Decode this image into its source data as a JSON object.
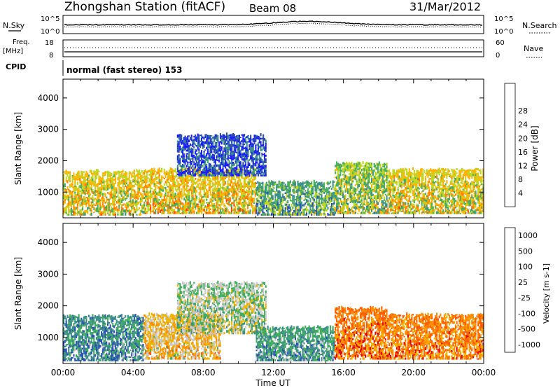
{
  "header": {
    "station": "Zhongshan Station (fitACF)",
    "beam": "Beam 08",
    "date": "31/Mar/2012"
  },
  "panels": {
    "noise": {
      "left_label": "N.Sky",
      "left_ticks": [
        "10^5",
        "10^0"
      ],
      "right_label": "N.Search",
      "right_ticks": [
        "10^5",
        "10^0"
      ]
    },
    "freq": {
      "left_label_top": "Freq.",
      "left_label_bottom": "[MHz]",
      "left_ticks": [
        "18",
        "8"
      ],
      "right_label": "Nave",
      "right_ticks": [
        "60",
        "0"
      ]
    },
    "cpid": {
      "label": "CPID",
      "text": "normal (fast stereo) 153"
    }
  },
  "chart_data": [
    {
      "type": "heatmap",
      "title": "",
      "xlabel": "Time UT",
      "ylabel": "Slant Range [km]",
      "x_ticks": [
        "00:00",
        "04:00",
        "08:00",
        "12:00",
        "16:00",
        "20:00",
        "00:00"
      ],
      "xlim": [
        0,
        24
      ],
      "y_ticks": [
        1000,
        2000,
        3000,
        4000
      ],
      "ylim": [
        180,
        4600
      ],
      "colorbar": {
        "label": "Power [dB]",
        "ticks": [
          "4",
          "8",
          "12",
          "16",
          "20",
          "24",
          "28"
        ],
        "colors": [
          "#1a1aff",
          "#2b4fb0",
          "#3b8f8a",
          "#48ad5c",
          "#bdd61f",
          "#ffb300",
          "#ff7f00",
          "#ff3b00",
          "#f00000"
        ]
      },
      "echo_regions": [
        {
          "t0": 0.0,
          "t1": 4.6,
          "r0": 250,
          "r1": 1650,
          "level": 0.55
        },
        {
          "t0": 4.6,
          "t1": 11.0,
          "r0": 300,
          "r1": 1700,
          "level": 0.58
        },
        {
          "t0": 6.5,
          "t1": 11.6,
          "r0": 1500,
          "r1": 2800,
          "level": 0.15
        },
        {
          "t0": 11.0,
          "t1": 15.5,
          "r0": 250,
          "r1": 1300,
          "level": 0.35
        },
        {
          "t0": 15.5,
          "t1": 18.5,
          "r0": 300,
          "r1": 1900,
          "level": 0.45
        },
        {
          "t0": 18.5,
          "t1": 24.0,
          "r0": 300,
          "r1": 1700,
          "level": 0.55
        }
      ]
    },
    {
      "type": "heatmap",
      "title": "",
      "xlabel": "Time UT",
      "ylabel": "Slant Range [km]",
      "x_ticks": [
        "00:00",
        "04:00",
        "08:00",
        "12:00",
        "16:00",
        "20:00",
        "00:00"
      ],
      "xlim": [
        0,
        24
      ],
      "y_ticks": [
        1000,
        2000,
        3000,
        4000
      ],
      "ylim": [
        180,
        4600
      ],
      "colorbar": {
        "label": "Velocity [m s-1]",
        "ticks": [
          "1000",
          "500",
          "100",
          "25",
          "-25",
          "-100",
          "-500",
          "-1000"
        ],
        "colors": [
          "#2a4fb6",
          "#3c8c8c",
          "#3fae5b",
          "#c8c8c8",
          "#f0b400",
          "#ff8c00",
          "#ff5a00",
          "#e60000"
        ]
      },
      "echo_regions": [
        {
          "t0": 0.0,
          "t1": 4.6,
          "r0": 250,
          "r1": 1650,
          "level": 0.2
        },
        {
          "t0": 4.6,
          "t1": 9.0,
          "r0": 300,
          "r1": 1700,
          "level": 0.55
        },
        {
          "t0": 6.5,
          "t1": 11.6,
          "r0": 1100,
          "r1": 2700,
          "level": 0.4
        },
        {
          "t0": 11.0,
          "t1": 15.5,
          "r0": 250,
          "r1": 1300,
          "level": 0.25
        },
        {
          "t0": 15.5,
          "t1": 18.5,
          "r0": 300,
          "r1": 1900,
          "level": 0.75
        },
        {
          "t0": 18.5,
          "t1": 24.0,
          "r0": 300,
          "r1": 1700,
          "level": 0.72
        }
      ]
    }
  ]
}
